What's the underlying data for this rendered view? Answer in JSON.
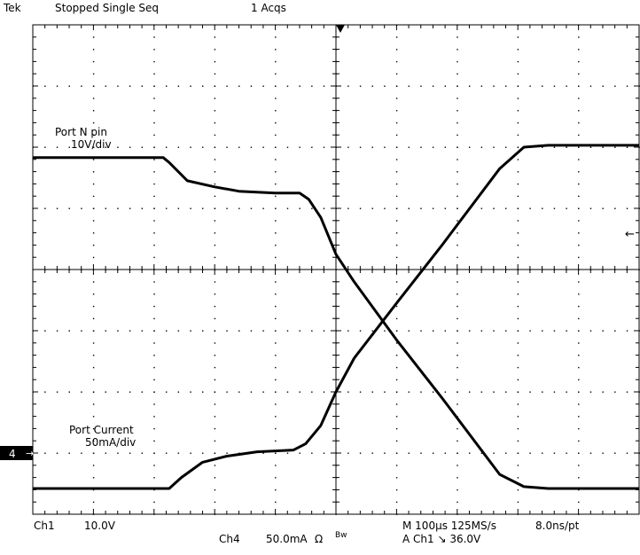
{
  "header": {
    "brand": "Tek",
    "status": "Stopped  Single Seq",
    "acqs": "1 Acqs"
  },
  "footer": {
    "ch1_name": "Ch1",
    "ch1_scale": "10.0V",
    "ch4_name": "Ch4",
    "ch4_scale": "50.0mA",
    "ohm_symbol": "Ω",
    "bw_symbol": "Bw",
    "timebase": "M 100µs 125MS/s",
    "record": "8.0ns/pt",
    "trigger": "A  Ch1  ↘  36.0V"
  },
  "ch4_marker": "4",
  "chart_data": {
    "type": "line",
    "x_unit": "div",
    "xlim": [
      0,
      10
    ],
    "ylim": [
      -4,
      4
    ],
    "grid": true,
    "series": [
      {
        "name": "Port N pin",
        "label_line2": "10V/div",
        "x": [
          0,
          2.15,
          2.25,
          2.55,
          3.0,
          3.4,
          4.0,
          4.4,
          4.55,
          4.75,
          5.0,
          5.3,
          6.0,
          6.75,
          7.7,
          8.1,
          8.5,
          10
        ],
        "y": [
          1.83,
          1.83,
          1.75,
          1.45,
          1.35,
          1.28,
          1.25,
          1.25,
          1.15,
          0.85,
          0.25,
          -0.2,
          -1.15,
          -2.1,
          -3.35,
          -3.55,
          -3.58,
          -3.58
        ]
      },
      {
        "name": "Port Current",
        "label_line2": "50mA/div",
        "x": [
          0,
          2.25,
          2.45,
          2.8,
          3.2,
          3.7,
          4.3,
          4.5,
          4.75,
          5.0,
          5.3,
          6.0,
          6.75,
          7.7,
          8.1,
          8.5,
          10
        ],
        "y": [
          -3.58,
          -3.58,
          -3.4,
          -3.15,
          -3.05,
          -2.98,
          -2.95,
          -2.85,
          -2.55,
          -2.0,
          -1.45,
          -0.55,
          0.4,
          1.65,
          2.0,
          2.03,
          2.03
        ]
      }
    ]
  }
}
